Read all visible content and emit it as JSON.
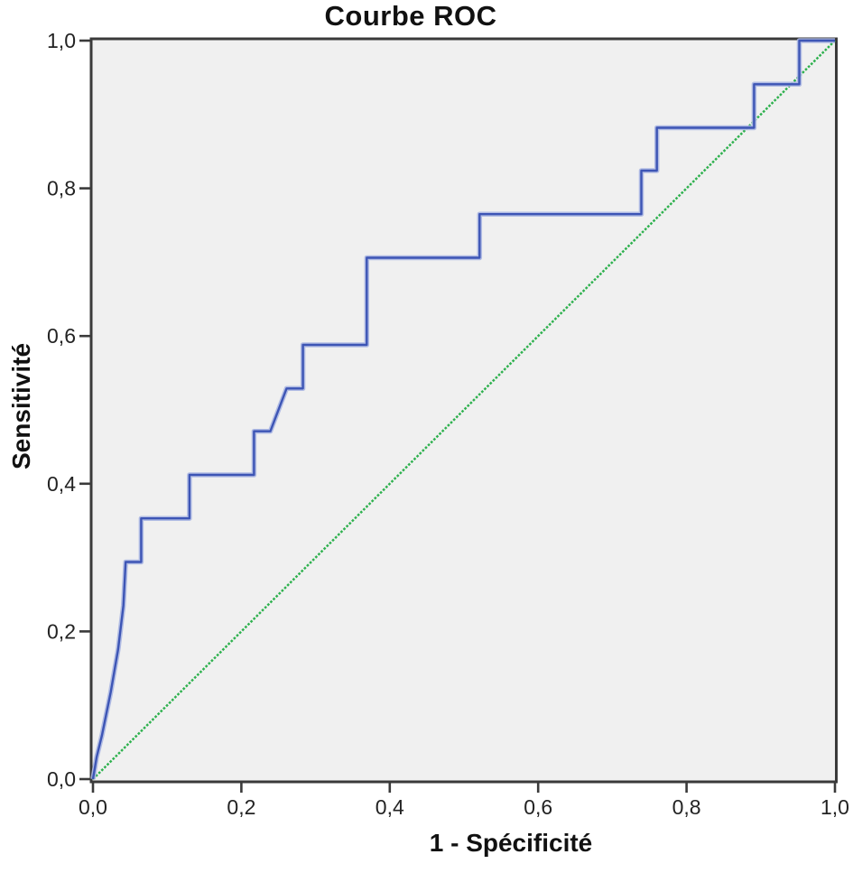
{
  "chart_data": {
    "type": "line",
    "subtype": "roc-step-curve",
    "title": "Courbe ROC",
    "xlabel": "1 - Spécificité",
    "ylabel": "Sensitivité",
    "xlim": [
      0,
      1
    ],
    "ylim": [
      0,
      1
    ],
    "grid": false,
    "legend": "none",
    "plot_background": "#f0f0f0",
    "frame_color": "#3a3a3a",
    "tick_color": "#3a3a3a",
    "tick_label_color": "#232323",
    "x_ticks": {
      "values": [
        0,
        0.2,
        0.4,
        0.6,
        0.8,
        1.0
      ],
      "labels": [
        "0,0",
        "0,2",
        "0,4",
        "0,6",
        "0,8",
        "1,0"
      ]
    },
    "y_ticks": {
      "values": [
        0,
        0.2,
        0.4,
        0.6,
        0.8,
        1.0
      ],
      "labels": [
        "0,0",
        "0,2",
        "0,4",
        "0,6",
        "0,8",
        "1,0"
      ]
    },
    "series": [
      {
        "name": "roc-curve",
        "color": "#3d55b5",
        "halo_color": "#aab6e2",
        "line_style": "solid",
        "points": [
          [
            0,
            0
          ],
          [
            0.005,
            0.03
          ],
          [
            0.012,
            0.059
          ],
          [
            0.024,
            0.118
          ],
          [
            0.034,
            0.176
          ],
          [
            0.041,
            0.235
          ],
          [
            0.044,
            0.294
          ],
          [
            0.065,
            0.294
          ],
          [
            0.065,
            0.353
          ],
          [
            0.13,
            0.353
          ],
          [
            0.13,
            0.412
          ],
          [
            0.217,
            0.412
          ],
          [
            0.217,
            0.471
          ],
          [
            0.239,
            0.471
          ],
          [
            0.261,
            0.529
          ],
          [
            0.283,
            0.529
          ],
          [
            0.283,
            0.588
          ],
          [
            0.369,
            0.588
          ],
          [
            0.369,
            0.706
          ],
          [
            0.521,
            0.706
          ],
          [
            0.521,
            0.765
          ],
          [
            0.739,
            0.765
          ],
          [
            0.739,
            0.824
          ],
          [
            0.76,
            0.824
          ],
          [
            0.76,
            0.882
          ],
          [
            0.891,
            0.882
          ],
          [
            0.891,
            0.941
          ],
          [
            0.952,
            0.941
          ],
          [
            0.952,
            1.0
          ],
          [
            1.0,
            1.0
          ]
        ]
      },
      {
        "name": "reference-diagonal",
        "color": "#2eb14e",
        "line_style": "dotted",
        "points": [
          [
            0,
            0
          ],
          [
            1,
            1
          ]
        ]
      }
    ]
  }
}
